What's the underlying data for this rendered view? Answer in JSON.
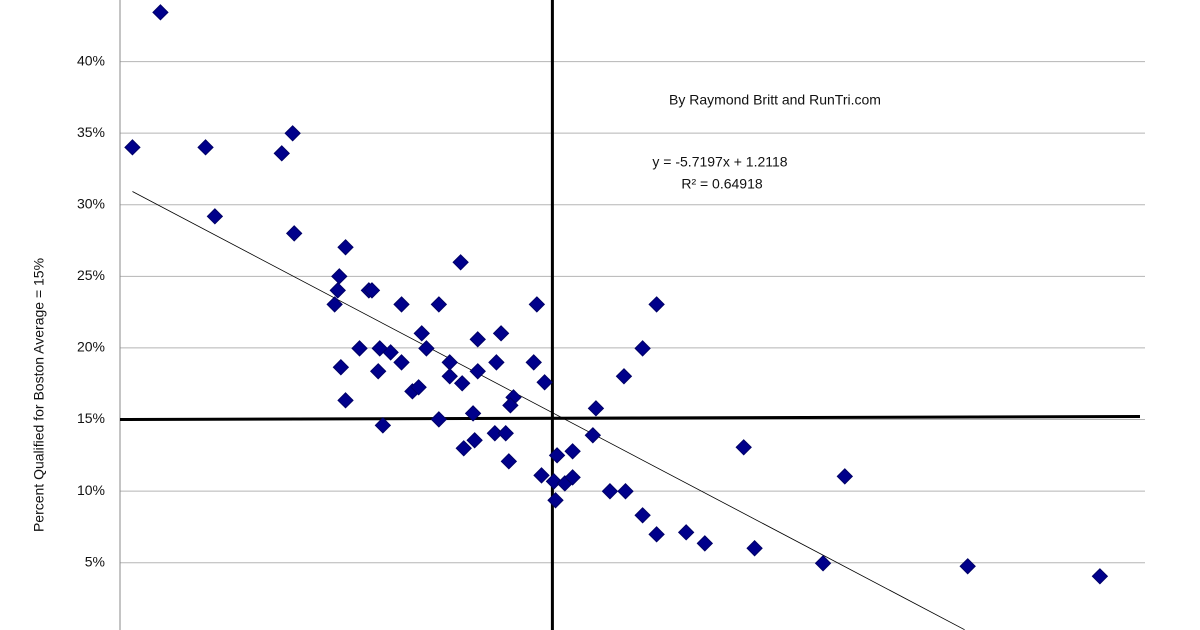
{
  "chart_data": {
    "type": "scatter",
    "ylabel": "Percent Qualified for Boston Average = 15%",
    "annotations": [
      "By Raymond Britt and RunTri.com",
      "y = -5.7197x + 1.2118",
      "R² = 0.64918"
    ],
    "color": "#00008b",
    "xlim": [
      0.157,
      0.2229
    ],
    "ylim": [
      0.003,
      0.443
    ],
    "yticks": [
      {
        "value": 0.05,
        "label": "5%"
      },
      {
        "value": 0.1,
        "label": "10%"
      },
      {
        "value": 0.15,
        "label": "15%"
      },
      {
        "value": 0.2,
        "label": "20%"
      },
      {
        "value": 0.25,
        "label": "25%"
      },
      {
        "value": 0.3,
        "label": "30%"
      },
      {
        "value": 0.35,
        "label": "35%"
      },
      {
        "value": 0.4,
        "label": "40%"
      }
    ],
    "grid": true,
    "trendline": {
      "slope": -5.7197,
      "intercept": 1.2118
    },
    "reference_lines": {
      "x": 0.1848,
      "y": 0.15
    },
    "x": [
      0.1596,
      0.1578,
      0.1625,
      0.1681,
      0.1674,
      0.1631,
      0.1682,
      0.1715,
      0.1711,
      0.171,
      0.1708,
      0.173,
      0.1732,
      0.1789,
      0.1751,
      0.1775,
      0.1838,
      0.1915,
      0.1764,
      0.18,
      0.1815,
      0.1767,
      0.1724,
      0.1737,
      0.1744,
      0.1751,
      0.1712,
      0.1736,
      0.1782,
      0.1782,
      0.179,
      0.18,
      0.1812,
      0.1836,
      0.1843,
      0.1906,
      0.1894,
      0.1758,
      0.1762,
      0.1715,
      0.1823,
      0.1821,
      0.1797,
      0.1876,
      0.1739,
      0.1775,
      0.1798,
      0.1791,
      0.1811,
      0.1818,
      0.1874,
      0.1971,
      0.1861,
      0.1851,
      0.182,
      0.1841,
      0.1849,
      0.1856,
      0.1861,
      0.2036,
      0.185,
      0.1885,
      0.1895,
      0.1906,
      0.1915,
      0.1934,
      0.1946,
      0.1978,
      0.2022,
      0.2115,
      0.22
    ],
    "y": [
      0.4344,
      0.3401,
      0.3401,
      0.3499,
      0.3359,
      0.2919,
      0.28,
      0.2703,
      0.25,
      0.2402,
      0.2304,
      0.2402,
      0.2402,
      0.2598,
      0.2304,
      0.2304,
      0.2304,
      0.2304,
      0.2102,
      0.206,
      0.2102,
      0.1997,
      0.1997,
      0.1997,
      0.1969,
      0.1899,
      0.1865,
      0.1837,
      0.1899,
      0.1802,
      0.1753,
      0.1837,
      0.1899,
      0.1899,
      0.176,
      0.1997,
      0.1802,
      0.1697,
      0.1725,
      0.1634,
      0.1655,
      0.1599,
      0.1543,
      0.1578,
      0.1459,
      0.1501,
      0.1355,
      0.1299,
      0.1404,
      0.1404,
      0.139,
      0.1306,
      0.1278,
      0.125,
      0.1208,
      0.111,
      0.1068,
      0.1054,
      0.1096,
      0.1103,
      0.0936,
      0.0999,
      0.0999,
      0.0831,
      0.0698,
      0.0712,
      0.0635,
      0.0601,
      0.0496,
      0.0475,
      0.0405
    ]
  }
}
